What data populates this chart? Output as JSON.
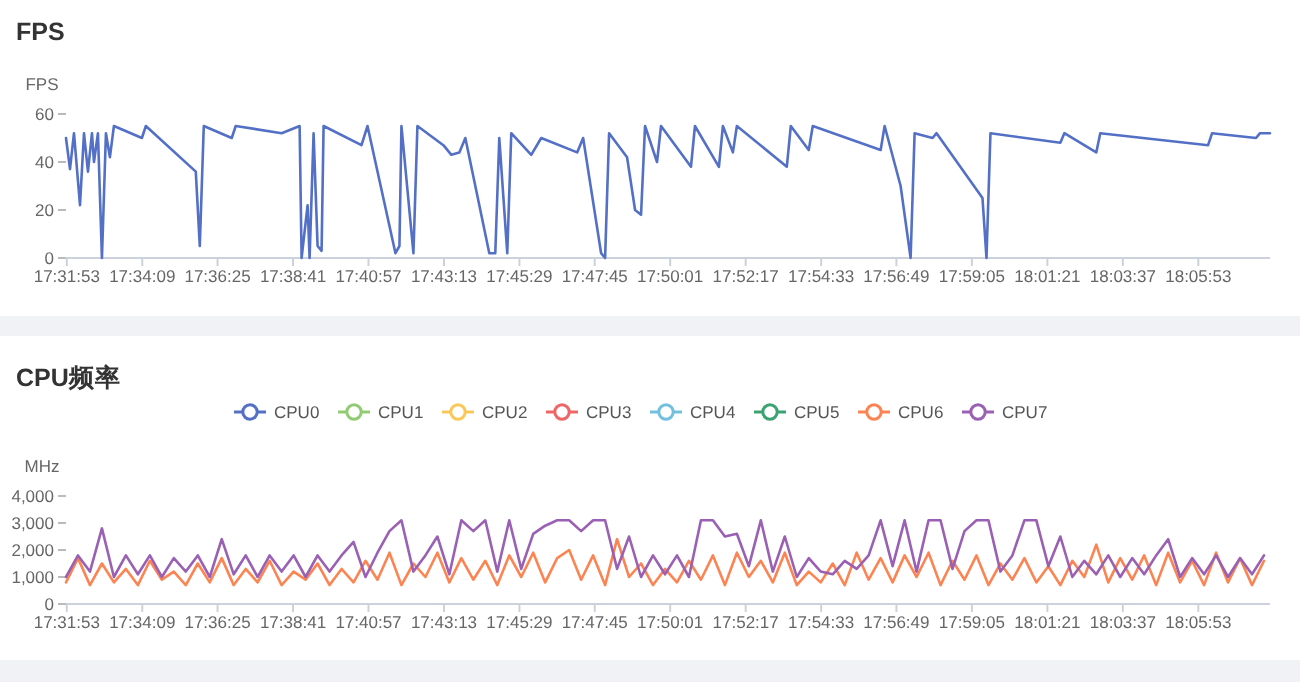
{
  "chart_data": [
    {
      "type": "line",
      "title": "FPS",
      "ylabel": "FPS",
      "ylim": [
        0,
        60
      ],
      "yticks": [
        0,
        20,
        40,
        60
      ],
      "xlim": [
        17.531,
        18.134
      ],
      "xticks": [
        {
          "value": 17.5314,
          "label": "17:31:53"
        },
        {
          "value": 17.5692,
          "label": "17:34:09"
        },
        {
          "value": 17.6069,
          "label": "17:36:25"
        },
        {
          "value": 17.6447,
          "label": "17:38:41"
        },
        {
          "value": 17.6825,
          "label": "17:40:57"
        },
        {
          "value": 17.7203,
          "label": "17:43:13"
        },
        {
          "value": 17.7581,
          "label": "17:45:29"
        },
        {
          "value": 17.7958,
          "label": "17:47:45"
        },
        {
          "value": 17.8336,
          "label": "17:50:01"
        },
        {
          "value": 17.8714,
          "label": "17:52:17"
        },
        {
          "value": 17.9092,
          "label": "17:54:33"
        },
        {
          "value": 17.9469,
          "label": "17:56:49"
        },
        {
          "value": 17.9847,
          "label": "17:59:05"
        },
        {
          "value": 18.0225,
          "label": "18:01:21"
        },
        {
          "value": 18.0603,
          "label": "18:03:37"
        },
        {
          "value": 18.0981,
          "label": "18:05:53"
        }
      ],
      "series": [
        {
          "color": "#5470c6",
          "x": [
            17.531,
            17.533,
            17.535,
            17.538,
            17.54,
            17.542,
            17.544,
            17.545,
            17.547,
            17.549,
            17.551,
            17.553,
            17.555,
            17.569,
            17.571,
            17.596,
            17.598,
            17.6,
            17.614,
            17.616,
            17.639,
            17.648,
            17.649,
            17.652,
            17.653,
            17.655,
            17.657,
            17.659,
            17.66,
            17.679,
            17.682,
            17.696,
            17.698,
            17.699,
            17.705,
            17.707,
            17.72,
            17.724,
            17.728,
            17.731,
            17.743,
            17.746,
            17.748,
            17.752,
            17.754,
            17.764,
            17.769,
            17.787,
            17.79,
            17.799,
            17.801,
            17.803,
            17.812,
            17.816,
            17.819,
            17.821,
            17.827,
            17.829,
            17.844,
            17.846,
            17.858,
            17.86,
            17.865,
            17.867,
            17.892,
            17.894,
            17.903,
            17.905,
            17.939,
            17.941,
            17.949,
            17.954,
            17.956,
            17.965,
            17.967,
            17.99,
            17.992,
            17.994,
            18.029,
            18.031,
            18.047,
            18.049,
            18.103,
            18.105,
            18.127,
            18.129,
            18.134
          ],
          "values": [
            50,
            37,
            52,
            22,
            52,
            36,
            52,
            40,
            52,
            0,
            52,
            42,
            55,
            50,
            55,
            36,
            5,
            55,
            50,
            55,
            52,
            55,
            0,
            22,
            0,
            52,
            5,
            3,
            55,
            47,
            55,
            2,
            5,
            55,
            2,
            55,
            47,
            43,
            44,
            50,
            2,
            2,
            50,
            2,
            52,
            43,
            50,
            44,
            50,
            2,
            0,
            52,
            42,
            20,
            18,
            55,
            40,
            55,
            38,
            55,
            38,
            55,
            44,
            55,
            38,
            55,
            45,
            55,
            45,
            55,
            30,
            0,
            52,
            50,
            52,
            25,
            0,
            52,
            48,
            52,
            44,
            52,
            47,
            52,
            50,
            52,
            52
          ]
        }
      ]
    },
    {
      "type": "line",
      "title": "CPU频率",
      "ylabel": "MHz",
      "legend": "top",
      "ylim": [
        0,
        4000
      ],
      "yticks": [
        0,
        {
          "value": 1000,
          "label": "1,000"
        },
        {
          "value": 2000,
          "label": "2,000"
        },
        {
          "value": 3000,
          "label": "3,000"
        },
        {
          "value": 4000,
          "label": "4,000"
        }
      ],
      "xlim": [
        17.531,
        18.134
      ],
      "xticks": [
        {
          "value": 17.5314,
          "label": "17:31:53"
        },
        {
          "value": 17.5692,
          "label": "17:34:09"
        },
        {
          "value": 17.6069,
          "label": "17:36:25"
        },
        {
          "value": 17.6447,
          "label": "17:38:41"
        },
        {
          "value": 17.6825,
          "label": "17:40:57"
        },
        {
          "value": 17.7203,
          "label": "17:43:13"
        },
        {
          "value": 17.7581,
          "label": "17:45:29"
        },
        {
          "value": 17.7958,
          "label": "17:47:45"
        },
        {
          "value": 17.8336,
          "label": "17:50:01"
        },
        {
          "value": 17.8714,
          "label": "17:52:17"
        },
        {
          "value": 17.9092,
          "label": "17:54:33"
        },
        {
          "value": 17.9469,
          "label": "17:56:49"
        },
        {
          "value": 17.9847,
          "label": "17:59:05"
        },
        {
          "value": 18.0225,
          "label": "18:01:21"
        },
        {
          "value": 18.0603,
          "label": "18:03:37"
        },
        {
          "value": 18.0981,
          "label": "18:05:53"
        }
      ],
      "x": [
        17.531,
        17.537,
        17.543,
        17.549,
        17.555,
        17.561,
        17.567,
        17.573,
        17.579,
        17.585,
        17.591,
        17.597,
        17.603,
        17.609,
        17.615,
        17.621,
        17.627,
        17.633,
        17.639,
        17.645,
        17.651,
        17.657,
        17.663,
        17.669,
        17.675,
        17.681,
        17.687,
        17.693,
        17.699,
        17.705,
        17.711,
        17.717,
        17.723,
        17.729,
        17.735,
        17.741,
        17.747,
        17.753,
        17.759,
        17.765,
        17.771,
        17.777,
        17.783,
        17.789,
        17.795,
        17.801,
        17.807,
        17.813,
        17.819,
        17.825,
        17.831,
        17.837,
        17.843,
        17.849,
        17.855,
        17.861,
        17.867,
        17.873,
        17.879,
        17.885,
        17.891,
        17.897,
        17.903,
        17.909,
        17.915,
        17.921,
        17.927,
        17.933,
        17.939,
        17.945,
        17.951,
        17.957,
        17.963,
        17.969,
        17.975,
        17.981,
        17.987,
        17.993,
        17.999,
        18.005,
        18.011,
        18.017,
        18.023,
        18.029,
        18.035,
        18.041,
        18.047,
        18.053,
        18.059,
        18.065,
        18.071,
        18.077,
        18.083,
        18.089,
        18.095,
        18.101,
        18.107,
        18.113,
        18.119,
        18.125,
        18.131
      ],
      "series": [
        {
          "name": "CPU0",
          "color": "#5470c6",
          "values": [
            null,
            null,
            null,
            null,
            null,
            null,
            null,
            null,
            null,
            null,
            null,
            null,
            null,
            null,
            null,
            null,
            null,
            null,
            null,
            null,
            null,
            null,
            null,
            null,
            null,
            null,
            null,
            null,
            null,
            null,
            null,
            null,
            null,
            null,
            null,
            null,
            null,
            null,
            null,
            null,
            null,
            null,
            null,
            null,
            null,
            null,
            null,
            null,
            null,
            null,
            null,
            null,
            null,
            null,
            null,
            null,
            null,
            null,
            null,
            null,
            null,
            null,
            null,
            null,
            null,
            null,
            null,
            null,
            null,
            null,
            null,
            null,
            null,
            null,
            null,
            null,
            null,
            null,
            null,
            null,
            null,
            null,
            null,
            null,
            null,
            null,
            null,
            null,
            null,
            null,
            null,
            null,
            null,
            null,
            null,
            null,
            null,
            null,
            null,
            null,
            null
          ]
        },
        {
          "name": "CPU1",
          "color": "#91cc75",
          "values": [
            null,
            null,
            null,
            null,
            null,
            null,
            null,
            null,
            null,
            null,
            null,
            null,
            null,
            null,
            null,
            null,
            null,
            null,
            null,
            null,
            null,
            null,
            null,
            null,
            null,
            null,
            null,
            null,
            null,
            null,
            null,
            null,
            null,
            null,
            null,
            null,
            null,
            null,
            null,
            null,
            null,
            null,
            null,
            null,
            null,
            null,
            null,
            null,
            null,
            null,
            null,
            null,
            null,
            null,
            null,
            null,
            null,
            null,
            null,
            null,
            null,
            null,
            null,
            null,
            null,
            null,
            null,
            null,
            null,
            null,
            null,
            null,
            null,
            null,
            null,
            null,
            null,
            null,
            null,
            null,
            null,
            null,
            null,
            null,
            null,
            null,
            null,
            null,
            null,
            null,
            null,
            null,
            null,
            null,
            null,
            null,
            null,
            null,
            null,
            null,
            null
          ]
        },
        {
          "name": "CPU2",
          "color": "#fac858",
          "values": [
            null,
            null,
            null,
            null,
            null,
            null,
            null,
            null,
            null,
            null,
            null,
            null,
            null,
            null,
            null,
            null,
            null,
            null,
            null,
            null,
            null,
            null,
            null,
            null,
            null,
            null,
            null,
            null,
            null,
            null,
            null,
            null,
            null,
            null,
            null,
            null,
            null,
            null,
            null,
            null,
            null,
            null,
            null,
            null,
            null,
            null,
            null,
            null,
            null,
            null,
            null,
            null,
            null,
            null,
            null,
            null,
            null,
            null,
            null,
            null,
            null,
            null,
            null,
            null,
            null,
            null,
            null,
            null,
            null,
            null,
            null,
            null,
            null,
            null,
            null,
            null,
            null,
            null,
            null,
            null,
            null,
            null,
            null,
            null,
            null,
            null,
            null,
            null,
            null,
            null,
            null,
            null,
            null,
            null,
            null,
            null,
            null,
            null,
            null,
            null,
            null
          ]
        },
        {
          "name": "CPU3",
          "color": "#ee6666",
          "values": [
            null,
            null,
            null,
            null,
            null,
            null,
            null,
            null,
            null,
            null,
            null,
            null,
            null,
            null,
            null,
            null,
            null,
            null,
            null,
            null,
            null,
            null,
            null,
            null,
            null,
            null,
            null,
            null,
            null,
            null,
            null,
            null,
            null,
            null,
            null,
            null,
            null,
            null,
            null,
            null,
            null,
            null,
            null,
            null,
            null,
            null,
            null,
            null,
            null,
            null,
            null,
            null,
            null,
            null,
            null,
            null,
            null,
            null,
            null,
            null,
            null,
            null,
            null,
            null,
            null,
            null,
            null,
            null,
            null,
            null,
            null,
            null,
            null,
            null,
            null,
            null,
            null,
            null,
            null,
            null,
            null,
            null,
            null,
            null,
            null,
            null,
            null,
            null,
            null,
            null,
            null,
            null,
            null,
            null,
            null,
            null,
            null,
            null,
            null,
            null,
            null
          ]
        },
        {
          "name": "CPU4",
          "color": "#73c0de",
          "values": [
            null,
            null,
            null,
            null,
            null,
            null,
            null,
            null,
            null,
            null,
            null,
            null,
            null,
            null,
            null,
            null,
            null,
            null,
            null,
            null,
            null,
            null,
            null,
            null,
            null,
            null,
            null,
            null,
            null,
            null,
            null,
            null,
            null,
            null,
            null,
            null,
            null,
            null,
            null,
            null,
            null,
            null,
            null,
            null,
            null,
            null,
            null,
            null,
            null,
            null,
            null,
            null,
            null,
            null,
            null,
            null,
            null,
            null,
            null,
            null,
            null,
            null,
            null,
            null,
            null,
            null,
            null,
            null,
            null,
            null,
            null,
            null,
            null,
            null,
            null,
            null,
            null,
            null,
            null,
            null,
            null,
            null,
            null,
            null,
            null,
            null,
            null,
            null,
            null,
            null,
            null,
            null,
            null,
            null,
            null,
            null,
            null,
            null,
            null,
            null,
            null
          ]
        },
        {
          "name": "CPU5",
          "color": "#3ba272",
          "values": [
            null,
            null,
            null,
            null,
            null,
            null,
            null,
            null,
            null,
            null,
            null,
            null,
            null,
            null,
            null,
            null,
            null,
            null,
            null,
            null,
            null,
            null,
            null,
            null,
            null,
            null,
            null,
            null,
            null,
            null,
            null,
            null,
            null,
            null,
            null,
            null,
            null,
            null,
            null,
            null,
            null,
            null,
            null,
            null,
            null,
            null,
            null,
            null,
            null,
            null,
            null,
            null,
            null,
            null,
            null,
            null,
            null,
            null,
            null,
            null,
            null,
            null,
            null,
            null,
            null,
            null,
            null,
            null,
            null,
            null,
            null,
            null,
            null,
            null,
            null,
            null,
            null,
            null,
            null,
            null,
            null,
            null,
            null,
            null,
            null,
            null,
            null,
            null,
            null,
            null,
            null,
            null,
            null,
            null,
            null,
            null,
            null,
            null,
            null,
            null,
            null
          ]
        },
        {
          "name": "CPU6",
          "color": "#fc8452",
          "values": [
            800,
            1700,
            700,
            1500,
            800,
            1300,
            700,
            1600,
            900,
            1200,
            700,
            1500,
            800,
            1700,
            700,
            1300,
            800,
            1600,
            700,
            1200,
            900,
            1500,
            700,
            1300,
            800,
            1600,
            900,
            1900,
            700,
            1500,
            1000,
            1900,
            800,
            1700,
            900,
            1600,
            700,
            1800,
            1000,
            1900,
            800,
            1700,
            2000,
            900,
            1800,
            700,
            2400,
            1000,
            1500,
            700,
            1300,
            800,
            1600,
            900,
            1800,
            700,
            1900,
            1000,
            1600,
            800,
            1900,
            700,
            1200,
            800,
            1500,
            700,
            1900,
            900,
            1700,
            800,
            1800,
            1000,
            1900,
            700,
            1600,
            900,
            1800,
            700,
            1500,
            900,
            1700,
            800,
            1400,
            700,
            1600,
            1000,
            2200,
            800,
            1700,
            900,
            1800,
            700,
            1900,
            800,
            1600,
            700,
            1900,
            800,
            1700,
            700,
            1600
          ]
        },
        {
          "name": "CPU7",
          "color": "#9a60b4",
          "values": [
            1000,
            1800,
            1200,
            2800,
            1000,
            1800,
            1100,
            1800,
            1000,
            1700,
            1200,
            1800,
            1000,
            2400,
            1100,
            1800,
            1000,
            1800,
            1200,
            1800,
            1000,
            1800,
            1200,
            1800,
            2300,
            1000,
            1900,
            2700,
            3100,
            1200,
            1800,
            2500,
            1100,
            3100,
            2700,
            3100,
            1200,
            3100,
            1300,
            2600,
            2900,
            3100,
            3100,
            2700,
            3100,
            3100,
            1300,
            2500,
            1000,
            1800,
            1100,
            1800,
            1000,
            3100,
            3100,
            2500,
            2600,
            1400,
            3100,
            1200,
            2500,
            1000,
            1700,
            1200,
            1100,
            1600,
            1300,
            1800,
            3100,
            1400,
            3100,
            1200,
            3100,
            3100,
            1300,
            2700,
            3100,
            3100,
            1200,
            1800,
            3100,
            3100,
            1400,
            2500,
            1000,
            1600,
            1100,
            1800,
            1000,
            1700,
            1100,
            1800,
            2400,
            1000,
            1700,
            1100,
            1800,
            1000,
            1700,
            1100,
            1800
          ]
        }
      ]
    }
  ]
}
